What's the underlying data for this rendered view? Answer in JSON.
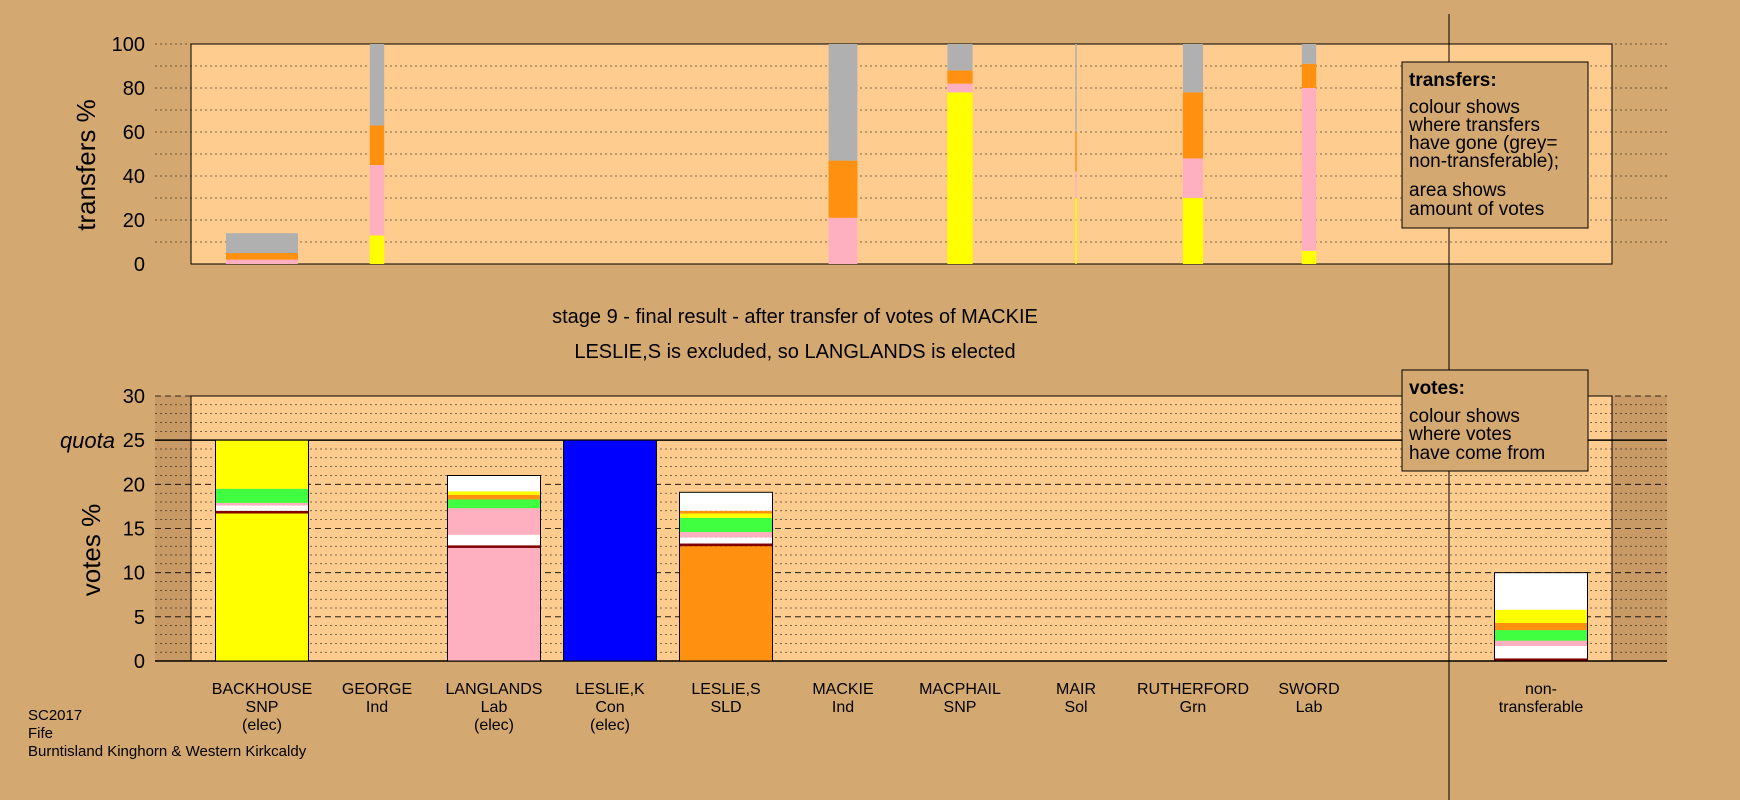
{
  "chart_data": [
    {
      "id": "transfers",
      "type": "bar",
      "ylabel": "transfers %",
      "ylim": [
        0,
        100
      ],
      "yticks": [
        0,
        20,
        40,
        60,
        80,
        100
      ],
      "categories": [
        "BACKHOUSE",
        "GEORGE",
        "LANGLANDS",
        "LESLIE,K",
        "LESLIE,S",
        "MACKIE",
        "MACPHAIL",
        "MAIR",
        "RUTHERFORD",
        "SWORD"
      ],
      "bar_width_share": [
        1.0,
        0.2,
        0.0,
        0.0,
        0.0,
        0.4,
        0.35,
        0.02,
        0.28,
        0.2
      ],
      "colors": {
        "SNP": "#ffff00",
        "Lab": "#ffb0c0",
        "SLD": "#ff9010",
        "nontransferable": "#b0b0b0"
      },
      "series": [
        {
          "key": "SNP",
          "values": [
            0,
            13,
            0,
            0,
            0,
            0,
            78,
            30,
            30,
            6
          ]
        },
        {
          "key": "Lab",
          "values": [
            2,
            32,
            0,
            0,
            0,
            21,
            4,
            12,
            18,
            74
          ]
        },
        {
          "key": "SLD",
          "values": [
            3,
            18,
            0,
            0,
            0,
            26,
            6,
            18,
            30,
            11
          ]
        },
        {
          "key": "nontransferable",
          "values": [
            9,
            37,
            0,
            0,
            0,
            53,
            12,
            40,
            22,
            9
          ]
        }
      ]
    },
    {
      "id": "votes",
      "type": "bar",
      "ylabel": "votes %",
      "ylim": [
        0,
        30
      ],
      "yticks": [
        0,
        5,
        10,
        15,
        20,
        25,
        30
      ],
      "quota": 25,
      "quota_label": "quota",
      "categories": [
        "BACKHOUSE",
        "GEORGE",
        "LANGLANDS",
        "LESLIE,K",
        "LESLIE,S",
        "MACKIE",
        "MACPHAIL",
        "MAIR",
        "RUTHERFORD",
        "SWORD"
      ],
      "cat_lines": [
        [
          "BACKHOUSE",
          "SNP",
          "(elec)"
        ],
        [
          "GEORGE",
          "Ind"
        ],
        [
          "LANGLANDS",
          "Lab",
          "(elec)"
        ],
        [
          "LESLIE,K",
          "Con",
          "(elec)"
        ],
        [
          "LESLIE,S",
          "SLD"
        ],
        [
          "MACKIE",
          "Ind"
        ],
        [
          "MACPHAIL",
          "SNP"
        ],
        [
          "MAIR",
          "Sol"
        ],
        [
          "RUTHERFORD",
          "Grn"
        ],
        [
          "SWORD",
          "Lab"
        ]
      ],
      "nontransferable_lines": [
        "non-",
        "transferable"
      ],
      "colors": {
        "own": [
          "#ffff00",
          null,
          "#ffb0c0",
          "#0000ff",
          "#ff9010",
          null,
          null,
          null,
          null,
          null
        ]
      },
      "stacks": [
        [
          {
            "v": 16.7,
            "c": "#ffff00"
          },
          {
            "v": 0.3,
            "c": "#800000"
          },
          {
            "v": 0.6,
            "c": "#ffffff"
          },
          {
            "v": 0.3,
            "c": "#ffb0c0"
          },
          {
            "v": 1.6,
            "c": "#40ff40"
          },
          {
            "v": 5.5,
            "c": "#ffff00"
          }
        ],
        [],
        [
          {
            "v": 12.8,
            "c": "#ffb0c0"
          },
          {
            "v": 0.3,
            "c": "#800000"
          },
          {
            "v": 1.2,
            "c": "#ffffff"
          },
          {
            "v": 3.0,
            "c": "#ffb0c0"
          },
          {
            "v": 1.0,
            "c": "#40ff40"
          },
          {
            "v": 0.5,
            "c": "#ff9010"
          },
          {
            "v": 0.4,
            "c": "#ffff00"
          },
          {
            "v": 1.8,
            "c": "#ffffff"
          }
        ],
        [
          {
            "v": 25,
            "c": "#0000ff"
          }
        ],
        [
          {
            "v": 13.0,
            "c": "#ff9010"
          },
          {
            "v": 0.3,
            "c": "#800000"
          },
          {
            "v": 0.7,
            "c": "#ffffff"
          },
          {
            "v": 0.6,
            "c": "#ffb0c0"
          },
          {
            "v": 1.6,
            "c": "#40ff40"
          },
          {
            "v": 0.5,
            "c": "#ffff00"
          },
          {
            "v": 0.3,
            "c": "#ff9010"
          },
          {
            "v": 2.1,
            "c": "#ffffff"
          }
        ],
        [],
        [],
        [],
        [],
        []
      ],
      "nontransferable_stack": [
        {
          "v": 0.3,
          "c": "#800000"
        },
        {
          "v": 1.4,
          "c": "#ffffff"
        },
        {
          "v": 0.6,
          "c": "#ffb0c0"
        },
        {
          "v": 1.2,
          "c": "#40ff40"
        },
        {
          "v": 0.8,
          "c": "#ff9010"
        },
        {
          "v": 1.5,
          "c": "#ffff00"
        },
        {
          "v": 4.2,
          "c": "#ffffff"
        }
      ]
    }
  ],
  "stage_title": "stage 9 - final result - after transfer of votes of MACKIE",
  "stage_subtitle": "LESLIE,S is excluded, so LANGLANDS is elected",
  "legend_transfers": {
    "title": "transfers:",
    "lines": [
      "colour shows",
      "where transfers",
      "have gone (grey=",
      "non-transferable);"
    ],
    "lines2": [
      "area shows",
      "amount of votes"
    ]
  },
  "legend_votes": {
    "title": "votes:",
    "lines": [
      "colour shows",
      "where votes",
      "have come from"
    ]
  },
  "source": [
    "SC2017",
    "Fife",
    "Burntisland Kinghorn & Western Kirkcaldy"
  ]
}
